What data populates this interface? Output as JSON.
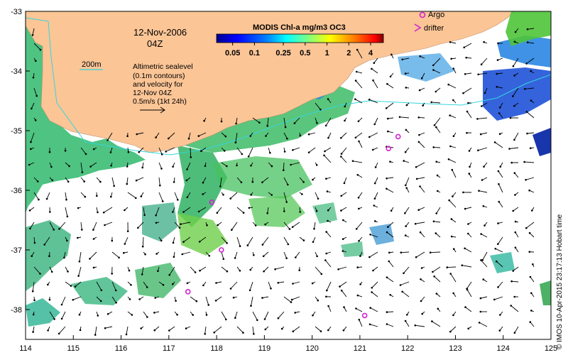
{
  "date_line": "12-Nov-2006",
  "time_line": "04Z",
  "colorbar": {
    "title": "MODIS Chl-a mg/m3 OC3",
    "ticks": [
      "0.05",
      "0.1",
      "0.25",
      "0.5",
      "1",
      "2",
      "4"
    ]
  },
  "isobath_label": "200m",
  "note_lines": [
    "Altimetric sealevel",
    "(0.1m contours)",
    "and velocity for",
    "12-Nov 04Z"
  ],
  "scale_label": "0.5m/s (1kt 24h)",
  "legend": {
    "argo": "Argo",
    "drifter": "drifter"
  },
  "credit": "© IMOS 10-Apr-2015 23:17:13 Hobart time",
  "axes": {
    "lon_ticks": [
      "114",
      "115",
      "116",
      "117",
      "118",
      "119",
      "120",
      "121",
      "122",
      "123",
      "124",
      "125"
    ],
    "lat_ticks": [
      "-33",
      "-34",
      "-35",
      "-36",
      "-37",
      "-38"
    ]
  },
  "argo_floats": [
    {
      "lon": 121.8,
      "lat": -35.1
    },
    {
      "lon": 121.6,
      "lat": -35.3
    },
    {
      "lon": 117.9,
      "lat": -36.2
    },
    {
      "lon": 118.1,
      "lat": -37.0
    },
    {
      "lon": 117.4,
      "lat": -37.7
    },
    {
      "lon": 121.1,
      "lat": -38.1
    }
  ],
  "colors": {
    "land": "#fbc596",
    "ocean": "#ffffff",
    "isobath": "#34d6dc",
    "argo": "#d321d3"
  }
}
